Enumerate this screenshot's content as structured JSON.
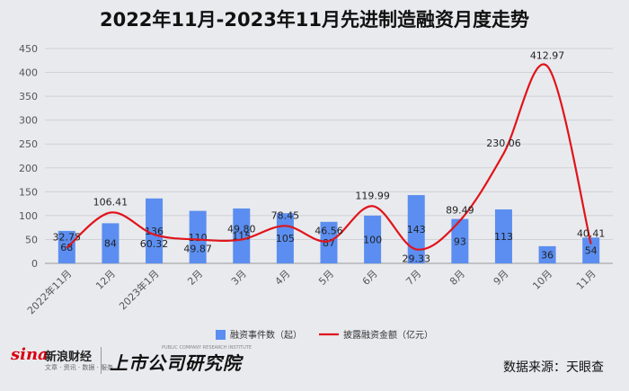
{
  "title": "2022年11月-2023年11月先进制造融资月度走势",
  "chart_data": {
    "type": "bar+line",
    "categories": [
      "2022年11月",
      "12月",
      "2023年1月",
      "2月",
      "3月",
      "4月",
      "5月",
      "6月",
      "7月",
      "8月",
      "9月",
      "10月",
      "11月"
    ],
    "series": [
      {
        "name": "融资事件数（起）",
        "type": "bar",
        "color": "#5b8ef0",
        "values": [
          68,
          84,
          136,
          110,
          115,
          105,
          87,
          100,
          143,
          93,
          113,
          36,
          54
        ]
      },
      {
        "name": "披露融资金额（亿元）",
        "type": "line",
        "color": "#e0141b",
        "values": [
          32.75,
          106.41,
          60.32,
          49.87,
          49.8,
          78.45,
          46.56,
          119.99,
          29.33,
          89.49,
          230.06,
          412.97,
          40.41
        ]
      }
    ],
    "line_label_text": [
      "32.75",
      "106.41",
      "60.32",
      "49.87",
      "49.80",
      "78.45",
      "46.56",
      "119.99",
      "29.33",
      "89.49",
      "230.06",
      "412.97",
      "40.41"
    ],
    "yticks": [
      0,
      50,
      100,
      150,
      200,
      250,
      300,
      350,
      400,
      450
    ],
    "ylim": [
      0,
      450
    ],
    "grid": true,
    "legend_position": "bottom"
  },
  "footer": {
    "sina_logo": "sina",
    "sina_name": "新浪财经",
    "sina_sub": "文章 · 资讯 · 数据 · 服务",
    "sls_small": "PUBLIC COMPANY RESEARCH INSTITUTE",
    "sls_name": "上市公司研究院",
    "source": "数据来源：天眼查"
  }
}
